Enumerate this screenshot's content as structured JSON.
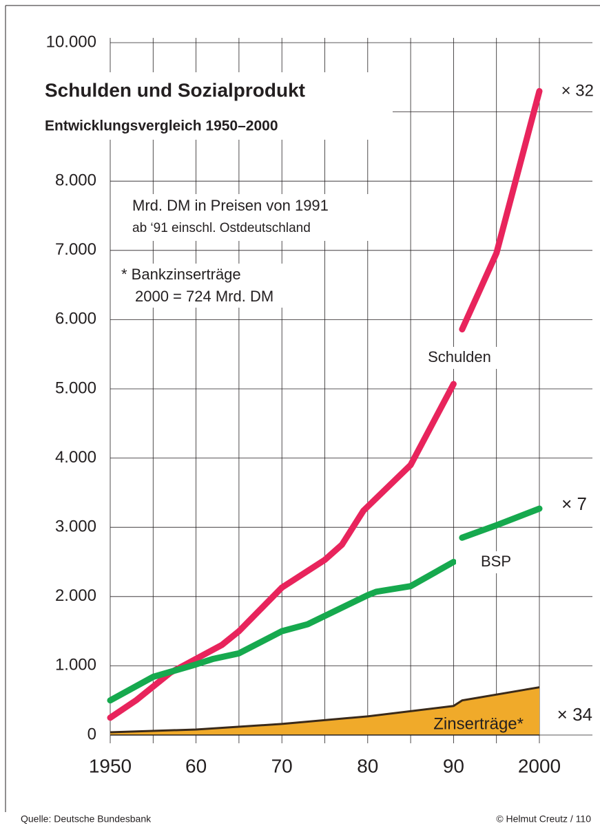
{
  "chart_data": {
    "type": "line",
    "title": "Schulden und Sozialprodukt",
    "subtitle": "Entwicklungsvergleich 1950–2000",
    "notes": [
      "Mrd. DM in Preisen von 1991",
      "ab ‘91 einschl. Ostdeutschland",
      "* Bankzinserträge",
      "2000 = 724 Mrd. DM"
    ],
    "annotations": [
      "× 32",
      "× 7",
      "× 34"
    ],
    "source": "Quelle: Deutsche Bundesbank",
    "credit": "© Helmut Creutz / 110",
    "xlim": [
      1950,
      2000
    ],
    "xticks": [
      1950,
      {
        "value": 1955,
        "label": null
      },
      {
        "value": 1960,
        "label": "60"
      },
      {
        "value": 1965,
        "label": null
      },
      {
        "value": 1970,
        "label": "70"
      },
      {
        "value": 1975,
        "label": null
      },
      {
        "value": 1980,
        "label": "80"
      },
      {
        "value": 1985,
        "label": null
      },
      {
        "value": 1990,
        "label": "90"
      },
      {
        "value": 1995,
        "label": null
      },
      2000
    ],
    "ylim": [
      0,
      10000
    ],
    "yticks": [
      0,
      {
        "value": 1000,
        "label": "1.000"
      },
      {
        "value": 2000,
        "label": "2.000"
      },
      {
        "value": 3000,
        "label": "3.000"
      },
      {
        "value": 4000,
        "label": "4.000"
      },
      {
        "value": 5000,
        "label": "5.000"
      },
      {
        "value": 6000,
        "label": "6.000"
      },
      {
        "value": 7000,
        "label": "7.000"
      },
      {
        "value": 8000,
        "label": "8.000"
      },
      {
        "value": 9000,
        "label": null
      },
      {
        "value": 10000,
        "label": "10.000"
      }
    ],
    "grid": true,
    "series": [
      {
        "name": "Schulden",
        "type": "line",
        "color": "#e8245c",
        "x": [
          1950,
          1953,
          1957,
          1960,
          1963,
          1965,
          1970,
          1975,
          1977,
          1979.5,
          1985,
          1990,
          null,
          1991,
          1995,
          2000
        ],
        "values": [
          250,
          500,
          900,
          1100,
          1300,
          1500,
          2130,
          2530,
          2750,
          3240,
          3900,
          5070,
          null,
          5860,
          6960,
          9300
        ]
      },
      {
        "name": "BSP",
        "type": "line",
        "color": "#16a94e",
        "x": [
          1950,
          1955,
          1960,
          1962,
          1965,
          1970,
          1973,
          1975,
          1980,
          1981,
          1985,
          1990,
          null,
          1991,
          1995,
          2000
        ],
        "values": [
          500,
          840,
          1020,
          1100,
          1180,
          1500,
          1600,
          1720,
          2020,
          2070,
          2150,
          2500,
          null,
          2850,
          3030,
          3270
        ]
      },
      {
        "name": "Zinserträge*",
        "type": "area",
        "color": "#f0aa2a",
        "x": [
          1950,
          1960,
          1970,
          1980,
          1990,
          1991,
          2000
        ],
        "values": [
          40,
          80,
          160,
          270,
          420,
          500,
          690
        ]
      }
    ]
  }
}
